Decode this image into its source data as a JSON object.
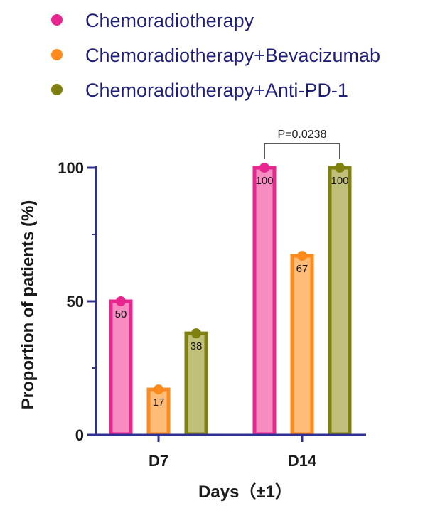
{
  "chart_data": {
    "type": "bar",
    "title": "",
    "categories": [
      "D7",
      "D14"
    ],
    "series": [
      {
        "name": "Chemoradiotherapy",
        "values": [
          50,
          100
        ],
        "color": "#e8268f",
        "fill": "#f78cc2"
      },
      {
        "name": "Chemoradiotherapy+Bevacizumab",
        "values": [
          17,
          67
        ],
        "color": "#ff8a1c",
        "fill": "#ffbb78"
      },
      {
        "name": "Chemoradiotherapy+Anti-PD-1",
        "values": [
          38,
          100
        ],
        "color": "#808010",
        "fill": "#c0c07a"
      }
    ],
    "data_labels": [
      [
        "50",
        "100"
      ],
      [
        "17",
        "67"
      ],
      [
        "38",
        "100"
      ]
    ],
    "xlabel": "Days（±1）",
    "ylabel": "Proportion of patients (%)",
    "ylim": [
      0,
      100
    ],
    "yticks": [
      0,
      50,
      100
    ],
    "ytick_labels": [
      "0",
      "50",
      "100"
    ],
    "annotations": [
      {
        "text": "P=0.0238",
        "category": "D14",
        "from_series": 0,
        "to_series": 2
      }
    ],
    "axis_color": "#2e3192",
    "grid": false,
    "legend_position": "top-left"
  }
}
